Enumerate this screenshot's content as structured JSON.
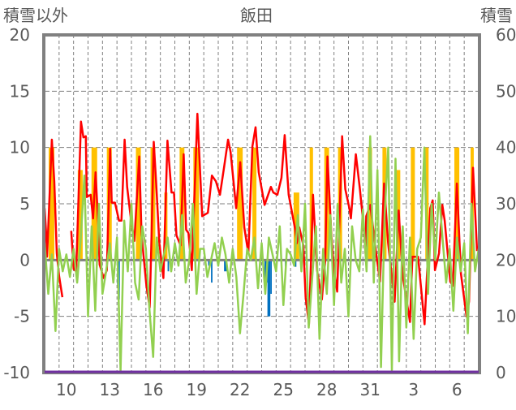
{
  "chart_data": {
    "type": "line",
    "title": "飯田",
    "left_axis_label": "積雪以外",
    "right_axis_label": "積雪",
    "xlim": [
      0,
      30
    ],
    "ylim_left": [
      -10,
      20
    ],
    "ylim_right": [
      0,
      60
    ],
    "left_ticks": [
      "20",
      "15",
      "10",
      "5",
      "0",
      "-5",
      "-10"
    ],
    "left_tick_values": [
      20,
      15,
      10,
      5,
      0,
      -5,
      -10
    ],
    "right_ticks": [
      "60",
      "50",
      "40",
      "30",
      "20",
      "10",
      "0"
    ],
    "right_tick_values": [
      60,
      50,
      40,
      30,
      20,
      10,
      0
    ],
    "x_ticks": [
      {
        "label": "10",
        "x": 1.5
      },
      {
        "label": "13",
        "x": 4.5
      },
      {
        "label": "16",
        "x": 7.5
      },
      {
        "label": "19",
        "x": 10.5
      },
      {
        "label": "22",
        "x": 13.5
      },
      {
        "label": "25",
        "x": 16.5
      },
      {
        "label": "28",
        "x": 19.5
      },
      {
        "label": "31",
        "x": 22.5
      },
      {
        "label": "3",
        "x": 25.5
      },
      {
        "label": "6",
        "x": 28.5
      }
    ],
    "grid": {
      "vertical_every_day": true,
      "horizontal_values": [
        15,
        10,
        5,
        -5
      ]
    },
    "colors": {
      "temperature": "#ff0000",
      "wind": "#92d050",
      "sunshine": "#ffc000",
      "precipitation": "#0070c0",
      "snow": "#7030a0",
      "axis": "#808080"
    },
    "series": [
      {
        "name": "temperature",
        "type": "line",
        "color": "#ff0000",
        "segments": [
          [
            [
              0,
              4.6
            ],
            [
              0.11,
              2.2
            ],
            [
              0.17,
              0.3
            ],
            [
              0.5,
              10.7
            ],
            [
              0.67,
              7
            ],
            [
              0.84,
              0.6
            ],
            [
              1.0,
              -1.4
            ],
            [
              1.23,
              -3.3
            ]
          ],
          [
            [
              1.84,
              2.6
            ],
            [
              2.01,
              -0.8
            ],
            [
              2.18,
              -1
            ],
            [
              2.51,
              12.3
            ],
            [
              2.68,
              10.9
            ],
            [
              2.85,
              11
            ],
            [
              2.91,
              5.6
            ],
            [
              3.18,
              5.8
            ],
            [
              3.35,
              3.7
            ],
            [
              3.52,
              7.8
            ],
            [
              3.69,
              3.5
            ],
            [
              3.8,
              -0.4
            ],
            [
              4.08,
              -1.6
            ],
            [
              4.3,
              -0.9
            ],
            [
              4.53,
              9.9
            ],
            [
              4.64,
              5.1
            ],
            [
              4.86,
              5.1
            ],
            [
              5.14,
              3.5
            ],
            [
              5.31,
              3.5
            ],
            [
              5.53,
              10.7
            ],
            [
              5.7,
              6.5
            ],
            [
              5.98,
              3.5
            ],
            [
              6.2,
              1.7
            ],
            [
              6.54,
              9.2
            ],
            [
              6.7,
              2.2
            ],
            [
              7.04,
              -2.3
            ],
            [
              7.26,
              -4.2
            ],
            [
              7.37,
              1
            ],
            [
              7.54,
              10.5
            ],
            [
              7.71,
              6.8
            ],
            [
              7.93,
              1.5
            ],
            [
              8.21,
              -1.6
            ],
            [
              8.49,
              10.6
            ],
            [
              8.77,
              6
            ],
            [
              8.94,
              6
            ],
            [
              9.11,
              2.2
            ],
            [
              9.39,
              1.3
            ],
            [
              9.61,
              9.4
            ],
            [
              9.78,
              2.7
            ],
            [
              9.94,
              2.4
            ],
            [
              10.17,
              -0.9
            ],
            [
              10.56,
              13
            ],
            [
              10.89,
              3.9
            ],
            [
              11.28,
              4.2
            ],
            [
              11.56,
              7.5
            ],
            [
              11.84,
              7
            ],
            [
              12.12,
              5.8
            ],
            [
              12.4,
              8.2
            ],
            [
              12.68,
              10.7
            ],
            [
              12.85,
              9.6
            ],
            [
              13.24,
              4.6
            ],
            [
              13.52,
              8.7
            ],
            [
              13.8,
              2.9
            ],
            [
              14.08,
              0.6
            ],
            [
              14.36,
              10.1
            ],
            [
              14.58,
              11.8
            ],
            [
              14.8,
              7.8
            ],
            [
              15.2,
              4.9
            ],
            [
              15.64,
              6.5
            ],
            [
              15.81,
              6
            ],
            [
              16.09,
              5.8
            ],
            [
              16.37,
              7.3
            ],
            [
              16.59,
              11.1
            ],
            [
              16.87,
              5.8
            ],
            [
              17.15,
              3.9
            ],
            [
              17.32,
              2.7
            ],
            [
              17.43,
              1.5
            ],
            [
              17.6,
              2.9
            ],
            [
              17.88,
              1.3
            ],
            [
              18.04,
              -3.3
            ],
            [
              18.27,
              -5.7
            ],
            [
              18.44,
              1
            ],
            [
              18.55,
              5.8
            ],
            [
              18.83,
              -0.9
            ],
            [
              19.16,
              -3.5
            ],
            [
              19.39,
              -0.1
            ],
            [
              19.55,
              9.2
            ],
            [
              19.83,
              2
            ],
            [
              20.0,
              -0.9
            ],
            [
              20.22,
              -2.8
            ],
            [
              20.56,
              11
            ],
            [
              20.78,
              6.3
            ],
            [
              21.06,
              4.6
            ],
            [
              21.17,
              3.7
            ],
            [
              21.51,
              9.4
            ],
            [
              21.79,
              6.3
            ],
            [
              22.07,
              2.7
            ],
            [
              22.18,
              0.6
            ],
            [
              22.23,
              3.9
            ],
            [
              22.51,
              4.9
            ],
            [
              22.91,
              0.6
            ],
            [
              23.18,
              -1.9
            ],
            [
              23.46,
              6.8
            ],
            [
              23.74,
              1.5
            ],
            [
              24.19,
              -3.7
            ],
            [
              24.47,
              4.4
            ],
            [
              24.75,
              -1.4
            ],
            [
              25.25,
              -5.5
            ],
            [
              25.42,
              0.3
            ],
            [
              25.81,
              0.3
            ],
            [
              26.26,
              -5.7
            ],
            [
              26.65,
              4.6
            ],
            [
              26.82,
              5.3
            ],
            [
              26.98,
              -0.9
            ],
            [
              27.26,
              0.6
            ],
            [
              27.49,
              4.9
            ],
            [
              27.65,
              3.5
            ],
            [
              28.04,
              -1.9
            ],
            [
              28.21,
              -2.3
            ],
            [
              28.49,
              6.8
            ],
            [
              28.77,
              -1.2
            ],
            [
              29.16,
              -5
            ],
            [
              29.33,
              -3.7
            ],
            [
              29.61,
              8.2
            ],
            [
              29.89,
              0.8
            ]
          ]
        ]
      },
      {
        "name": "wind",
        "type": "line",
        "color": "#92d050",
        "step": 0.25,
        "values": [
          1.5,
          -3,
          0.5,
          -6.3,
          1,
          -1,
          0.5,
          -1.5,
          1,
          -2,
          2,
          7.5,
          -5,
          3,
          -4.5,
          5,
          -3,
          -1,
          1.5,
          -2,
          2,
          -9.8,
          3.5,
          -1,
          5,
          -2,
          -3.5,
          3,
          1,
          -4.5,
          -8.6,
          2,
          -1,
          0.5,
          2,
          -1,
          1.5,
          -0.5,
          4,
          -2,
          0,
          5,
          -3,
          1,
          1,
          -1.5,
          0,
          1.5,
          -0.5,
          2,
          0.5,
          -2,
          1,
          -1.5,
          -6.5,
          -3,
          1,
          0,
          2,
          -2.5,
          1.5,
          -3,
          2,
          0.5,
          -1,
          3,
          -4,
          1,
          0.5,
          -0.5,
          4,
          -1,
          5,
          -6,
          -1.5,
          3,
          -7,
          1,
          -3,
          4,
          -4,
          5,
          -2,
          1,
          -5,
          3,
          0,
          -1,
          4.5,
          -1,
          11,
          -2,
          8,
          -9.5,
          4,
          10,
          -9.8,
          9,
          -9,
          3,
          -6,
          2,
          -7,
          1,
          2,
          10,
          -3,
          5,
          0,
          6,
          2,
          -2,
          1,
          -4.5,
          2,
          -1,
          1.5,
          -6.5,
          5,
          -1,
          1
        ]
      },
      {
        "name": "sunshine",
        "type": "bar",
        "color": "#ffc000",
        "bars": [
          [
            0.28,
            0.67,
            10
          ],
          [
            2.29,
            2.63,
            8
          ],
          [
            3.24,
            3.63,
            10
          ],
          [
            4.3,
            4.64,
            10
          ],
          [
            6.31,
            6.65,
            10
          ],
          [
            7.32,
            7.65,
            10
          ],
          [
            8.27,
            8.49,
            6
          ],
          [
            9.33,
            9.66,
            10
          ],
          [
            10.28,
            10.67,
            10
          ],
          [
            13.3,
            13.69,
            10
          ],
          [
            14.36,
            14.64,
            10
          ],
          [
            17.21,
            17.6,
            6
          ],
          [
            18.32,
            18.55,
            10
          ],
          [
            19.33,
            19.66,
            10
          ],
          [
            20.28,
            20.56,
            10
          ],
          [
            22.35,
            22.63,
            10
          ],
          [
            23.35,
            23.63,
            10
          ],
          [
            24.3,
            24.58,
            8
          ],
          [
            25.31,
            25.59,
            10
          ],
          [
            26.31,
            26.54,
            10
          ],
          [
            28.32,
            28.66,
            10
          ],
          [
            29.44,
            29.66,
            10
          ]
        ]
      },
      {
        "name": "precipitation",
        "type": "bar",
        "color": "#0070c0",
        "bars": [
          [
            5.0,
            5.1,
            -2.2
          ],
          [
            5.1,
            5.2,
            -3.5
          ],
          [
            8.5,
            8.6,
            -1
          ],
          [
            11.3,
            11.4,
            -0.5
          ],
          [
            11.5,
            11.6,
            -2
          ],
          [
            12.4,
            12.6,
            -1
          ],
          [
            15.2,
            15.4,
            -2
          ],
          [
            15.4,
            15.6,
            -5
          ],
          [
            15.6,
            15.7,
            -3
          ],
          [
            16.6,
            16.7,
            -0.6
          ],
          [
            17.3,
            17.4,
            -0.6
          ]
        ]
      },
      {
        "name": "snow_depth",
        "type": "line",
        "axis": "right",
        "color": "#7030a0",
        "values": [
          [
            0,
            0
          ],
          [
            30,
            0
          ]
        ]
      }
    ]
  }
}
